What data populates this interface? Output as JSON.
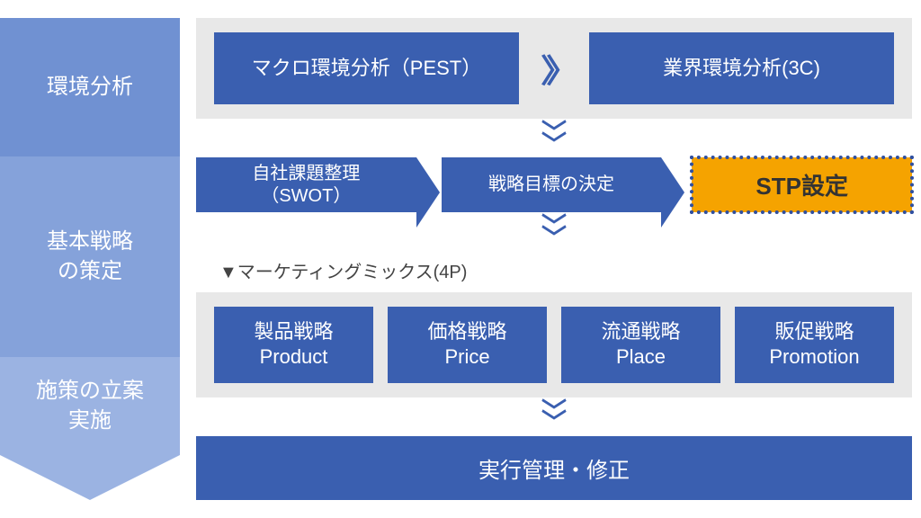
{
  "colors": {
    "blue_main": "#3a5fb0",
    "blue_phase1": "#7091d2",
    "blue_phase2": "#85a2da",
    "blue_phase3": "#9bb3e2",
    "panel_gray": "#e8e8e8",
    "highlight_bg": "#f5a300",
    "highlight_outline": "#2f4fa0",
    "text_dark": "#333333",
    "white": "#ffffff"
  },
  "phases": {
    "p1": "環境分析",
    "p2": "基本戦略\nの策定",
    "p3": "施策の立案\n実施"
  },
  "row1": {
    "box1": "マクロ環境分析（PEST）",
    "box2": "業界環境分析(3C)"
  },
  "row2": {
    "box1": "自社課題整理\n（SWOT）",
    "box2": "戦略目標の決定",
    "stp": "STP設定"
  },
  "mm_label": "▼マーケティングミックス(4P)",
  "p4": {
    "b1_line1": "製品戦略",
    "b1_line2": "Product",
    "b2_line1": "価格戦略",
    "b2_line2": "Price",
    "b3_line1": "流通戦略",
    "b3_line2": "Place",
    "b4_line1": "販促戦略",
    "b4_line2": "Promotion"
  },
  "exec": "実行管理・修正",
  "chev": "〉〉",
  "vchev1": "﹀",
  "vchev2": "﹀"
}
